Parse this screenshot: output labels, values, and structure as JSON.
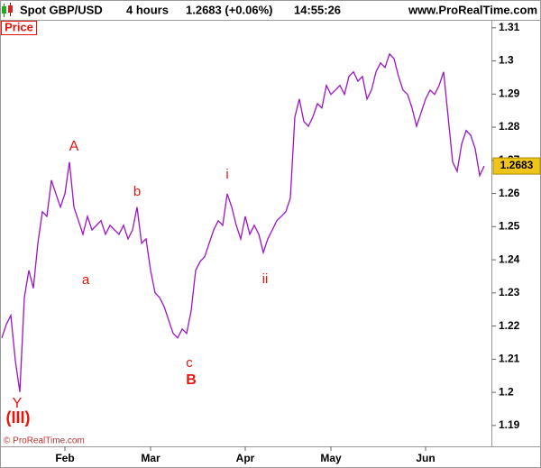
{
  "header": {
    "instrument": "Spot GBP/USD",
    "timeframe": "4 hours",
    "quote": "1.2683 (+0.06%)",
    "time": "14:55:26",
    "site": "www.ProRealTime.com"
  },
  "chart_data": {
    "type": "line",
    "axis_label": "Price",
    "watermark": "© ProRealTime.com",
    "categories": [
      null,
      null,
      null,
      null,
      null,
      null,
      null,
      null,
      null,
      null,
      null,
      null,
      null,
      null,
      "Feb",
      null,
      null,
      null,
      null,
      null,
      null,
      null,
      null,
      null,
      null,
      null,
      null,
      null,
      null,
      null,
      null,
      null,
      null,
      "Mar",
      null,
      null,
      null,
      null,
      null,
      null,
      null,
      null,
      null,
      null,
      null,
      null,
      null,
      null,
      null,
      null,
      null,
      null,
      null,
      null,
      "Apr",
      null,
      null,
      null,
      null,
      null,
      null,
      null,
      null,
      null,
      null,
      null,
      null,
      null,
      null,
      null,
      null,
      null,
      null,
      "May",
      null,
      null,
      null,
      null,
      null,
      null,
      null,
      null,
      null,
      null,
      null,
      null,
      null,
      null,
      null,
      null,
      null,
      null,
      null,
      null,
      "Jun",
      null,
      null,
      null,
      null,
      null,
      null,
      null,
      null,
      null,
      null,
      null,
      null,
      null
    ],
    "series": [
      {
        "color": "#9b14c8",
        "values": [
          1.2164,
          1.2205,
          1.2232,
          1.2096,
          1.2001,
          1.2286,
          1.2368,
          1.2314,
          1.245,
          1.2545,
          1.2531,
          1.264,
          1.2599,
          1.2559,
          1.2599,
          1.2695,
          1.2559,
          1.2518,
          1.2477,
          1.2531,
          1.249,
          1.2504,
          1.2518,
          1.2477,
          1.2504,
          1.249,
          1.2477,
          1.2504,
          1.2463,
          1.249,
          1.2559,
          1.245,
          1.2463,
          1.2368,
          1.23,
          1.2286,
          1.2259,
          1.2218,
          1.2178,
          1.2164,
          1.2191,
          1.2178,
          1.2246,
          1.2368,
          1.2395,
          1.2409,
          1.245,
          1.249,
          1.2518,
          1.2504,
          1.2599,
          1.2559,
          1.2504,
          1.2463,
          1.2531,
          1.2477,
          1.2504,
          1.2477,
          1.2422,
          1.2463,
          1.249,
          1.2518,
          1.2531,
          1.2545,
          1.2586,
          1.2831,
          1.2885,
          1.2817,
          1.2803,
          1.2831,
          1.2871,
          1.2858,
          1.2926,
          1.2899,
          1.2912,
          1.2926,
          1.2899,
          1.2953,
          1.2967,
          1.2939,
          1.2953,
          1.2885,
          1.2912,
          1.2967,
          1.2994,
          1.298,
          1.3021,
          1.3007,
          1.2953,
          1.2912,
          1.2899,
          1.2858,
          1.2803,
          1.2844,
          1.2885,
          1.2912,
          1.2899,
          1.2926,
          1.2967,
          1.2831,
          1.2695,
          1.2667,
          1.2749,
          1.279,
          1.2776,
          1.2735,
          1.2654,
          1.2683
        ]
      }
    ],
    "ylim": [
      1.1837,
      1.3124
    ],
    "yticks": [
      1.19,
      1.2,
      1.21,
      1.22,
      1.23,
      1.24,
      1.25,
      1.26,
      1.27,
      1.28,
      1.29,
      1.3,
      1.31
    ],
    "annotation_color": "#e8140c",
    "annotations": [
      "A",
      "a",
      "b",
      "c",
      "B",
      "i",
      "ii",
      "Y",
      "(III)"
    ]
  }
}
